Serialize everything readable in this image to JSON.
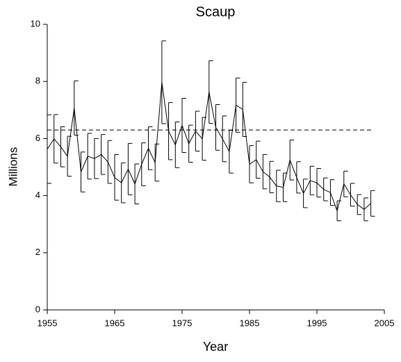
{
  "chart_data": {
    "type": "line",
    "title": "Scaup",
    "x_label": "Year",
    "y_label": "Millions",
    "x": [
      1955,
      1956,
      1957,
      1958,
      1959,
      1960,
      1961,
      1962,
      1963,
      1964,
      1965,
      1966,
      1967,
      1968,
      1969,
      1970,
      1971,
      1972,
      1973,
      1974,
      1975,
      1976,
      1977,
      1978,
      1979,
      1980,
      1981,
      1982,
      1983,
      1984,
      1985,
      1986,
      1987,
      1988,
      1989,
      1990,
      1991,
      1992,
      1993,
      1994,
      1995,
      1996,
      1997,
      1998,
      1999,
      2000,
      2001,
      2002,
      2003
    ],
    "values": [
      5.63,
      5.99,
      5.71,
      5.38,
      7.07,
      4.83,
      5.38,
      5.3,
      5.44,
      5.18,
      4.64,
      4.45,
      4.93,
      4.41,
      5.1,
      5.66,
      5.16,
      7.97,
      6.26,
      5.78,
      6.46,
      5.82,
      6.26,
      5.99,
      7.63,
      6.39,
      5.99,
      5.54,
      7.17,
      7.02,
      5.1,
      5.26,
      4.84,
      4.65,
      4.34,
      4.29,
      5.25,
      4.64,
      4.08,
      4.53,
      4.45,
      4.22,
      4.11,
      3.47,
      4.41,
      4.03,
      3.69,
      3.52,
      3.73
    ],
    "errors": [
      1.2,
      0.85,
      0.7,
      0.7,
      0.95,
      0.7,
      0.8,
      0.7,
      0.7,
      0.75,
      0.8,
      0.7,
      0.9,
      0.7,
      0.75,
      0.75,
      0.65,
      1.45,
      1.0,
      0.8,
      0.95,
      0.65,
      0.7,
      0.75,
      1.1,
      0.8,
      0.8,
      0.75,
      0.95,
      0.95,
      0.65,
      0.65,
      0.6,
      0.55,
      0.55,
      0.5,
      0.7,
      0.55,
      0.5,
      0.5,
      0.5,
      0.4,
      0.45,
      0.35,
      0.45,
      0.4,
      0.35,
      0.4,
      0.45
    ],
    "color": "#000000",
    "reference_line": 6.3,
    "xlim": [
      1955,
      2005
    ],
    "xticks": [
      1955,
      1965,
      1975,
      1985,
      1995,
      2005
    ],
    "ylim": [
      0,
      10
    ],
    "yticks": [
      0,
      2,
      4,
      6,
      8,
      10
    ]
  }
}
